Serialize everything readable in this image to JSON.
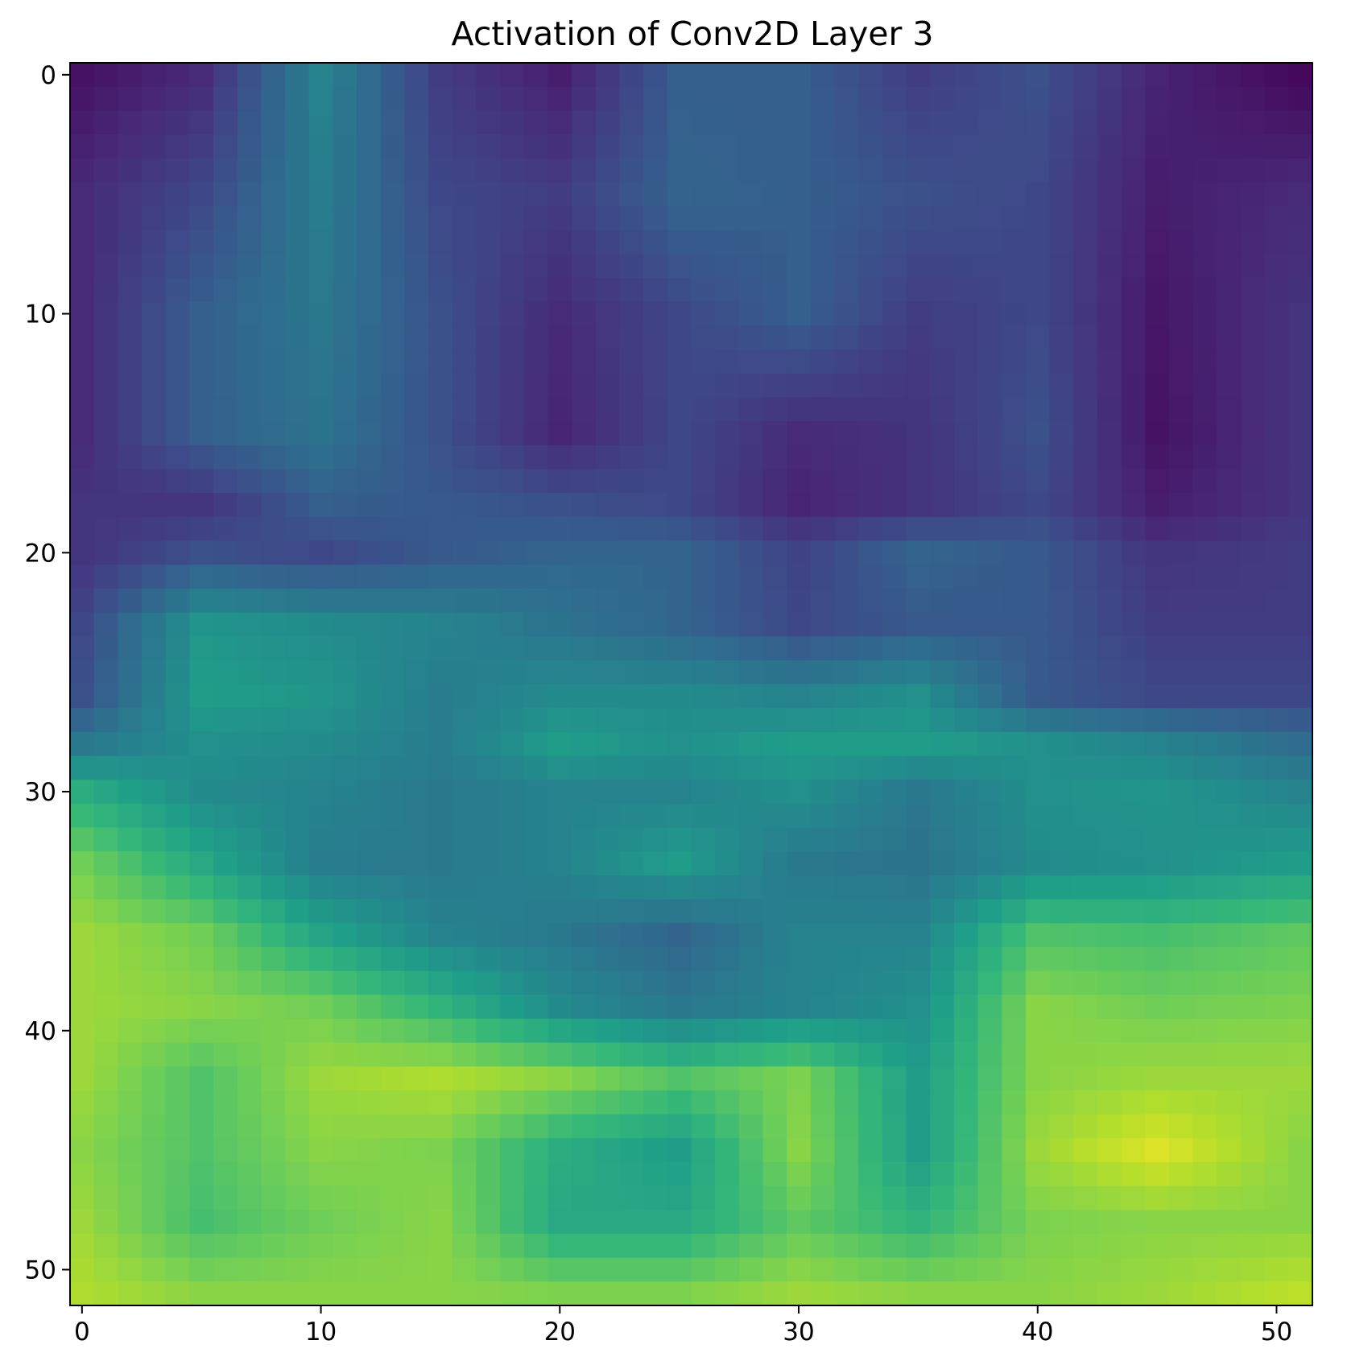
{
  "chart_data": {
    "type": "heatmap",
    "title": "Activation of Conv2D Layer 3",
    "xlabel": "",
    "ylabel": "",
    "colormap": "viridis",
    "rows": 52,
    "cols": 52,
    "xlim": [
      -0.5,
      51.5
    ],
    "ylim": [
      51.5,
      -0.5
    ],
    "x_ticks": [
      0,
      10,
      20,
      30,
      40,
      50
    ],
    "y_ticks": [
      0,
      10,
      20,
      30,
      40,
      50
    ],
    "value_range": [
      0,
      1
    ],
    "anchor_grid": {
      "rows_at": [
        0,
        5,
        10,
        15,
        18,
        20,
        23,
        26,
        28,
        30,
        33,
        36,
        39,
        42,
        45,
        48,
        51
      ],
      "cols_at": [
        0,
        5,
        10,
        15,
        20,
        25,
        30,
        35,
        40,
        45,
        51
      ],
      "values": [
        [
          0.05,
          0.12,
          0.45,
          0.18,
          0.08,
          0.3,
          0.3,
          0.18,
          0.25,
          0.1,
          0.02
        ],
        [
          0.12,
          0.22,
          0.42,
          0.22,
          0.18,
          0.32,
          0.3,
          0.25,
          0.22,
          0.08,
          0.12
        ],
        [
          0.12,
          0.3,
          0.4,
          0.25,
          0.12,
          0.22,
          0.3,
          0.18,
          0.22,
          0.06,
          0.15
        ],
        [
          0.12,
          0.3,
          0.38,
          0.25,
          0.1,
          0.22,
          0.12,
          0.15,
          0.25,
          0.05,
          0.15
        ],
        [
          0.15,
          0.15,
          0.3,
          0.28,
          0.25,
          0.22,
          0.1,
          0.15,
          0.22,
          0.08,
          0.15
        ],
        [
          0.15,
          0.25,
          0.22,
          0.28,
          0.32,
          0.32,
          0.2,
          0.32,
          0.28,
          0.15,
          0.18
        ],
        [
          0.22,
          0.52,
          0.48,
          0.45,
          0.38,
          0.32,
          0.22,
          0.28,
          0.28,
          0.18,
          0.18
        ],
        [
          0.25,
          0.55,
          0.52,
          0.42,
          0.48,
          0.48,
          0.45,
          0.5,
          0.28,
          0.22,
          0.22
        ],
        [
          0.4,
          0.5,
          0.48,
          0.42,
          0.55,
          0.5,
          0.55,
          0.55,
          0.5,
          0.45,
          0.35
        ],
        [
          0.62,
          0.48,
          0.45,
          0.4,
          0.45,
          0.45,
          0.5,
          0.4,
          0.5,
          0.52,
          0.45
        ],
        [
          0.78,
          0.6,
          0.42,
          0.4,
          0.45,
          0.55,
          0.4,
          0.38,
          0.48,
          0.5,
          0.55
        ],
        [
          0.85,
          0.78,
          0.58,
          0.45,
          0.4,
          0.32,
          0.45,
          0.45,
          0.72,
          0.7,
          0.75
        ],
        [
          0.85,
          0.82,
          0.78,
          0.65,
          0.48,
          0.4,
          0.45,
          0.5,
          0.82,
          0.78,
          0.8
        ],
        [
          0.85,
          0.72,
          0.85,
          0.88,
          0.82,
          0.72,
          0.8,
          0.55,
          0.82,
          0.85,
          0.85
        ],
        [
          0.82,
          0.72,
          0.82,
          0.8,
          0.62,
          0.55,
          0.82,
          0.55,
          0.85,
          0.95,
          0.82
        ],
        [
          0.85,
          0.7,
          0.78,
          0.82,
          0.6,
          0.6,
          0.75,
          0.65,
          0.8,
          0.82,
          0.82
        ],
        [
          0.88,
          0.82,
          0.82,
          0.82,
          0.8,
          0.8,
          0.85,
          0.82,
          0.82,
          0.85,
          0.9
        ]
      ]
    }
  }
}
